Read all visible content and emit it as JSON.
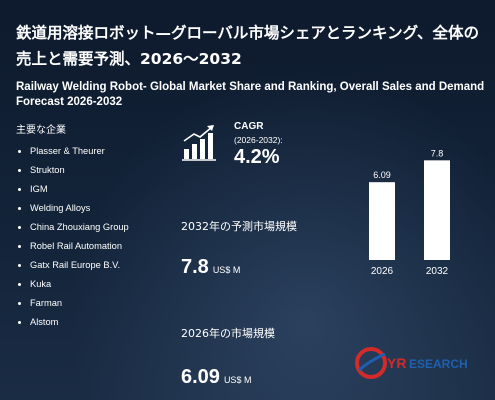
{
  "title_jp": "鉄道用溶接ロボット—グローバル市場シェアとランキング、全体の売上と需要予測、2026〜2032",
  "title_en": "Railway Welding Robot- Global Market Share and Ranking, Overall Sales and Demand Forecast 2026-2032",
  "companies": {
    "heading": "主要な企業",
    "items": [
      "Plasser & Theurer",
      "Strukton",
      "IGM",
      "Welding Alloys",
      "China Zhouxiang Group",
      "Robel Rail Automation",
      "Gatx Rail Europe B.V.",
      "Kuka",
      "Farman",
      "Alstom"
    ]
  },
  "cagr": {
    "label": "CAGR",
    "period": "(2026-2032):",
    "value": "4.2%",
    "icon": "growth-chart-icon"
  },
  "market_2032": {
    "label": "2032年の予測市場規模",
    "value": "7.8",
    "unit": "US$ M"
  },
  "market_2026": {
    "label": "2026年の市場規模",
    "value": "6.09",
    "unit": "US$ M"
  },
  "chart_data": {
    "type": "bar",
    "categories": [
      "2026",
      "2032"
    ],
    "values": [
      6.09,
      7.8
    ],
    "value_labels": [
      "6.09",
      "7.8"
    ],
    "ylim": [
      0,
      9
    ],
    "bar_color": "#ffffff"
  },
  "logo": {
    "text_q": "Q",
    "text_yr": "YR",
    "text_esearch": "ESEARCH"
  },
  "colors": {
    "background": "#0f1a2e",
    "text": "#ffffff",
    "logo_red": "#d32a2a",
    "logo_blue": "#1f5fae"
  }
}
